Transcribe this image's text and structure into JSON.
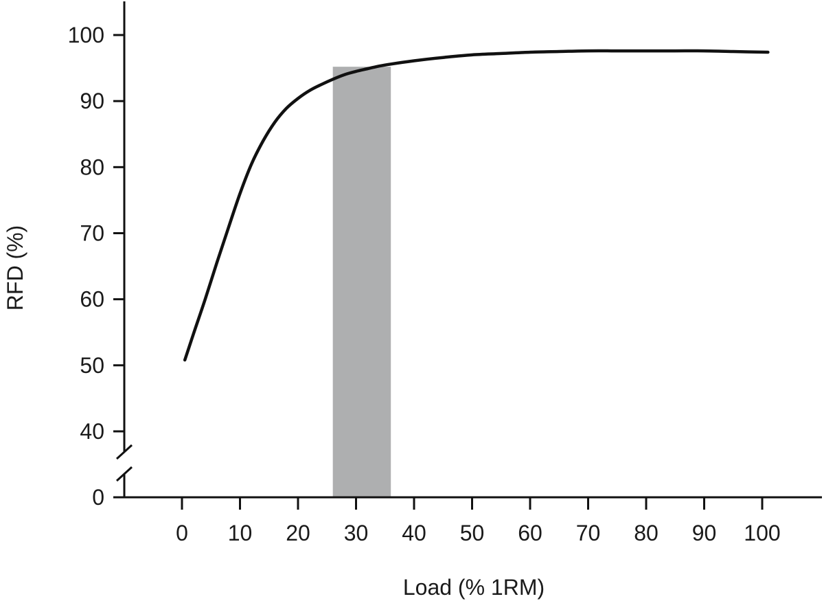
{
  "chart_data": {
    "type": "line",
    "title": "",
    "xlabel": "Load (% 1RM)",
    "ylabel": "RFD (%)",
    "xlim": [
      -10,
      110
    ],
    "ylim": [
      0,
      100
    ],
    "y_axis_break": [
      0,
      40
    ],
    "xticks": [
      0,
      10,
      20,
      30,
      40,
      50,
      60,
      70,
      80,
      90,
      100
    ],
    "yticks": [
      0,
      40,
      50,
      60,
      70,
      80,
      90,
      100
    ],
    "grid": false,
    "highlight_band": {
      "x": [
        26,
        36
      ],
      "color": "#aeafb0"
    },
    "series": [
      {
        "color": "#111111",
        "x": [
          0.5,
          2,
          4,
          6,
          8,
          10,
          12,
          14,
          16,
          18,
          20,
          22,
          24,
          26,
          28,
          30,
          32,
          34,
          36,
          40,
          45,
          50,
          55,
          60,
          65,
          70,
          75,
          80,
          85,
          90,
          95,
          101
        ],
        "y": [
          50.8,
          54.8,
          60.0,
          65.5,
          70.8,
          76.0,
          80.5,
          84.0,
          86.8,
          88.9,
          90.4,
          91.6,
          92.5,
          93.3,
          94.0,
          94.5,
          94.9,
          95.3,
          95.6,
          96.1,
          96.6,
          97.0,
          97.2,
          97.4,
          97.5,
          97.6,
          97.6,
          97.6,
          97.6,
          97.6,
          97.5,
          97.4
        ]
      }
    ]
  }
}
